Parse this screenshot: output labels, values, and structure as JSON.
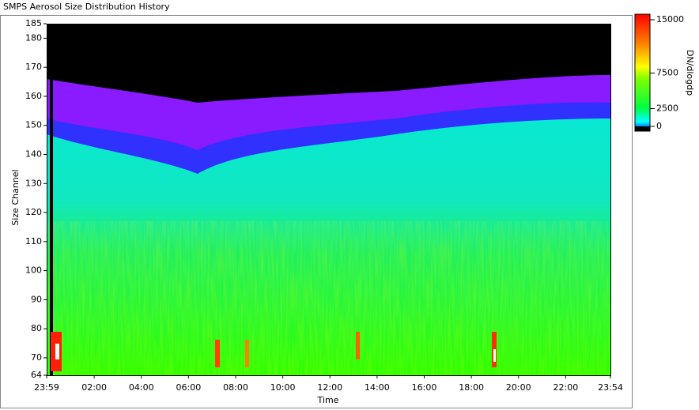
{
  "chart_data": {
    "type": "heatmap",
    "title": "SMPS Aerosol Size Distribution History",
    "x_label": "Time",
    "y_label": "Size Channel",
    "xlim": [
      -0.0167,
      23.9
    ],
    "xticks": [
      {
        "value": -0.0167,
        "label": "23:59"
      },
      {
        "value": 2,
        "label": "02:00"
      },
      {
        "value": 4,
        "label": "04:00"
      },
      {
        "value": 6,
        "label": "06:00"
      },
      {
        "value": 8,
        "label": "08:00"
      },
      {
        "value": 10,
        "label": "10:00"
      },
      {
        "value": 12,
        "label": "12:00"
      },
      {
        "value": 14,
        "label": "14:00"
      },
      {
        "value": 16,
        "label": "16:00"
      },
      {
        "value": 18,
        "label": "18:00"
      },
      {
        "value": 20,
        "label": "20:00"
      },
      {
        "value": 22,
        "label": "22:00"
      },
      {
        "value": 23.9,
        "label": "23:54"
      }
    ],
    "ylim": [
      64,
      185
    ],
    "yticks": [
      64,
      70,
      80,
      90,
      100,
      110,
      120,
      130,
      140,
      150,
      160,
      170,
      180,
      185
    ],
    "colorbar": {
      "label": "DN/dlogdp",
      "lim": [
        0,
        15000
      ],
      "ticks": [
        0,
        2500,
        7500,
        15000
      ]
    }
  }
}
